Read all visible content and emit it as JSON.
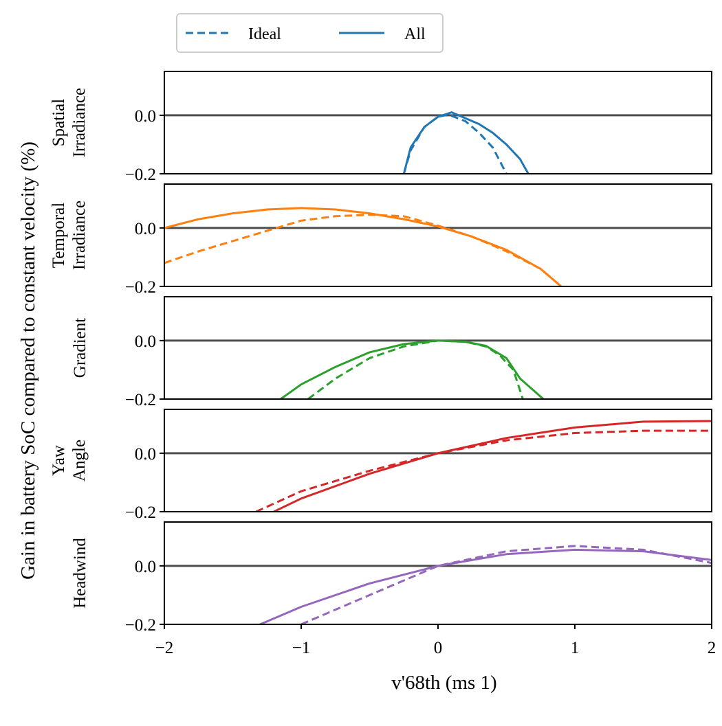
{
  "chart_data": {
    "type": "line",
    "ylabel": "Gain in battery SoC compared to constant velocity (%)",
    "xlabel": "v'68th (ms 1)",
    "xlim": [
      -2,
      2
    ],
    "ylim": [
      -0.2,
      0.15
    ],
    "x_ticks": [
      "−2",
      "−1",
      "0",
      "1",
      "2"
    ],
    "x_tick_values": [
      -2,
      -1,
      0,
      1,
      2
    ],
    "y_ticks": [
      "0.0",
      "−0.2"
    ],
    "y_tick_values": [
      0.0,
      -0.2
    ],
    "legend": {
      "position": "top-left-outside",
      "entries": [
        {
          "label": "Ideal",
          "style": "dashed"
        },
        {
          "label": "All",
          "style": "solid"
        }
      ]
    },
    "reference_line": {
      "y": 0.0,
      "color": "#4d4d4d"
    },
    "panels": [
      {
        "label_lines": [
          "Spatial",
          "Irradiance"
        ],
        "color": "#1f77b4",
        "series": [
          {
            "name": "Ideal",
            "style": "dashed",
            "points": [
              [
                -0.25,
                -0.2
              ],
              [
                -0.2,
                -0.12
              ],
              [
                -0.1,
                -0.04
              ],
              [
                0.0,
                -0.005
              ],
              [
                0.05,
                0.0
              ],
              [
                0.1,
                -0.002
              ],
              [
                0.2,
                -0.02
              ],
              [
                0.3,
                -0.06
              ],
              [
                0.4,
                -0.11
              ],
              [
                0.5,
                -0.2
              ]
            ]
          },
          {
            "name": "All",
            "style": "solid",
            "points": [
              [
                -0.25,
                -0.2
              ],
              [
                -0.2,
                -0.11
              ],
              [
                -0.1,
                -0.04
              ],
              [
                0.0,
                -0.005
              ],
              [
                0.1,
                0.01
              ],
              [
                0.2,
                -0.01
              ],
              [
                0.3,
                -0.03
              ],
              [
                0.4,
                -0.06
              ],
              [
                0.5,
                -0.1
              ],
              [
                0.6,
                -0.15
              ],
              [
                0.66,
                -0.2
              ]
            ]
          }
        ]
      },
      {
        "label_lines": [
          "Temporal",
          "Irradiance"
        ],
        "color": "#ff7f0e",
        "series": [
          {
            "name": "Ideal",
            "style": "dashed",
            "points": [
              [
                -2.0,
                -0.12
              ],
              [
                -1.75,
                -0.08
              ],
              [
                -1.5,
                -0.045
              ],
              [
                -1.25,
                -0.01
              ],
              [
                -1.0,
                0.025
              ],
              [
                -0.75,
                0.04
              ],
              [
                -0.5,
                0.045
              ],
              [
                -0.25,
                0.04
              ],
              [
                0.0,
                0.008
              ],
              [
                0.25,
                -0.03
              ],
              [
                0.5,
                -0.08
              ],
              [
                0.75,
                -0.14
              ],
              [
                0.9,
                -0.2
              ]
            ]
          },
          {
            "name": "All",
            "style": "solid",
            "points": [
              [
                -2.0,
                0.0
              ],
              [
                -1.75,
                0.03
              ],
              [
                -1.5,
                0.05
              ],
              [
                -1.25,
                0.063
              ],
              [
                -1.0,
                0.068
              ],
              [
                -0.75,
                0.063
              ],
              [
                -0.5,
                0.05
              ],
              [
                -0.25,
                0.03
              ],
              [
                0.0,
                0.005
              ],
              [
                0.25,
                -0.03
              ],
              [
                0.5,
                -0.075
              ],
              [
                0.75,
                -0.14
              ],
              [
                0.9,
                -0.2
              ]
            ]
          }
        ]
      },
      {
        "label_lines": [
          "Gradient"
        ],
        "color": "#2ca02c",
        "series": [
          {
            "name": "Ideal",
            "style": "dashed",
            "points": [
              [
                -0.95,
                -0.2
              ],
              [
                -0.75,
                -0.13
              ],
              [
                -0.5,
                -0.06
              ],
              [
                -0.25,
                -0.02
              ],
              [
                0.0,
                0.0
              ],
              [
                0.2,
                -0.004
              ],
              [
                0.35,
                -0.02
              ],
              [
                0.45,
                -0.05
              ],
              [
                0.55,
                -0.1
              ],
              [
                0.62,
                -0.2
              ]
            ]
          },
          {
            "name": "All",
            "style": "solid",
            "points": [
              [
                -1.15,
                -0.2
              ],
              [
                -1.0,
                -0.15
              ],
              [
                -0.75,
                -0.09
              ],
              [
                -0.5,
                -0.04
              ],
              [
                -0.25,
                -0.012
              ],
              [
                0.0,
                0.0
              ],
              [
                0.2,
                -0.004
              ],
              [
                0.35,
                -0.018
              ],
              [
                0.5,
                -0.06
              ],
              [
                0.6,
                -0.13
              ],
              [
                0.77,
                -0.2
              ]
            ]
          }
        ]
      },
      {
        "label_lines": [
          "Yaw",
          "Angle"
        ],
        "color": "#d62728",
        "series": [
          {
            "name": "Ideal",
            "style": "dashed",
            "points": [
              [
                -1.33,
                -0.2
              ],
              [
                -1.0,
                -0.13
              ],
              [
                -0.5,
                -0.06
              ],
              [
                0.0,
                0.0
              ],
              [
                0.5,
                0.044
              ],
              [
                1.0,
                0.069
              ],
              [
                1.5,
                0.077
              ],
              [
                2.0,
                0.077
              ]
            ]
          },
          {
            "name": "All",
            "style": "solid",
            "points": [
              [
                -1.2,
                -0.2
              ],
              [
                -1.0,
                -0.155
              ],
              [
                -0.5,
                -0.07
              ],
              [
                0.0,
                0.0
              ],
              [
                0.5,
                0.052
              ],
              [
                1.0,
                0.088
              ],
              [
                1.5,
                0.108
              ],
              [
                2.0,
                0.11
              ]
            ]
          }
        ]
      },
      {
        "label_lines": [
          "Headwind"
        ],
        "color": "#9467bd",
        "series": [
          {
            "name": "Ideal",
            "style": "dashed",
            "points": [
              [
                -1.0,
                -0.2
              ],
              [
                -0.5,
                -0.1
              ],
              [
                0.0,
                0.0
              ],
              [
                0.5,
                0.05
              ],
              [
                1.0,
                0.068
              ],
              [
                1.5,
                0.055
              ],
              [
                2.0,
                0.01
              ]
            ]
          },
          {
            "name": "All",
            "style": "solid",
            "points": [
              [
                -1.3,
                -0.2
              ],
              [
                -1.0,
                -0.14
              ],
              [
                -0.5,
                -0.06
              ],
              [
                0.0,
                0.0
              ],
              [
                0.5,
                0.04
              ],
              [
                1.0,
                0.055
              ],
              [
                1.5,
                0.05
              ],
              [
                2.0,
                0.02
              ]
            ]
          }
        ]
      }
    ]
  }
}
